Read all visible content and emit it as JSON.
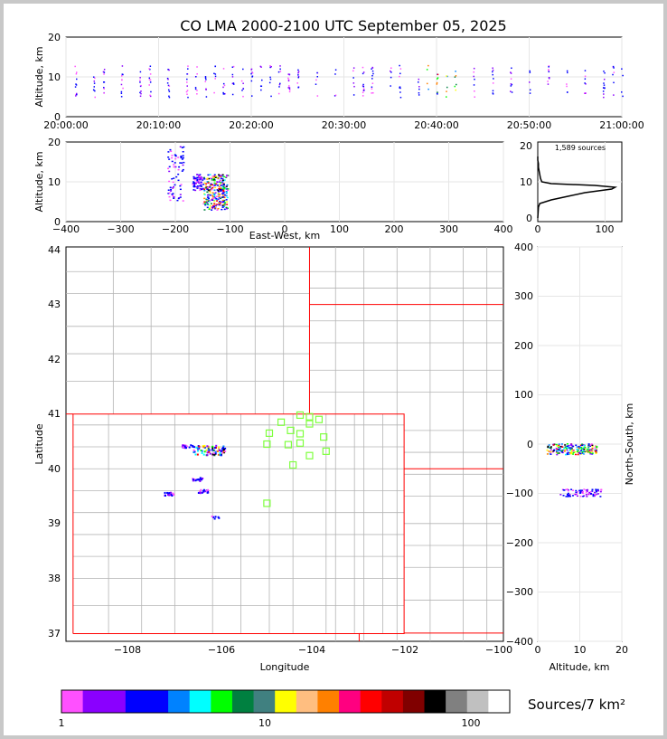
{
  "title": "CO LMA 2000-2100 UTC September 05, 2025",
  "colors": {
    "frame_bg": "#c8c8c8",
    "state_border": "#ff0000",
    "county_border": "#b4b4b4",
    "station_marker": "#7fff3f",
    "altitude_profile": "#000000"
  },
  "time_height": {
    "ylabel": "Altitude, km",
    "yticks": [
      "0",
      "10",
      "20"
    ],
    "xticks": [
      "20:00:00",
      "20:10:00",
      "20:20:00",
      "20:30:00",
      "20:40:00",
      "20:50:00",
      "21:00:00"
    ]
  },
  "east_west": {
    "ylabel": "Altitude, km",
    "xlabel": "East-West, km",
    "yticks": [
      "0",
      "10",
      "20"
    ],
    "xticks": [
      "−400",
      "−300",
      "−200",
      "−100",
      "0",
      "100",
      "200",
      "300",
      "400"
    ]
  },
  "histogram": {
    "sources_label": "1,589 sources",
    "yticks": [
      "0",
      "10",
      "20"
    ],
    "xticks": [
      "0",
      "100"
    ]
  },
  "plan_view": {
    "xlabel": "Longitude",
    "ylabel": "Latitude",
    "xticks": [
      "−108",
      "−106",
      "−104",
      "−102",
      "−100"
    ],
    "yticks": [
      "37",
      "38",
      "39",
      "40",
      "41",
      "42",
      "43",
      "44"
    ]
  },
  "north_south": {
    "xlabel": "Altitude, km",
    "ylabel": "North-South, km",
    "xticks": [
      "0",
      "10",
      "20"
    ],
    "yticks": [
      "−400",
      "−300",
      "−200",
      "−100",
      "0",
      "100",
      "200",
      "300",
      "400"
    ]
  },
  "colorbar": {
    "label": "Sources/7 km²",
    "ticks": [
      "1",
      "10",
      "100"
    ],
    "colors": [
      "#ff50ff",
      "#8a00ff",
      "#8a00ff",
      "#0000ff",
      "#0000ff",
      "#0082ff",
      "#00ffff",
      "#00ff00",
      "#008040",
      "#408080",
      "#ffff00",
      "#ffbe80",
      "#ff8000",
      "#ff0080",
      "#ff0000",
      "#c00000",
      "#800000",
      "#000000",
      "#808080",
      "#c0c0c0",
      "#ffffff"
    ]
  },
  "chart_data": [
    {
      "type": "scatter",
      "panel": "time-height",
      "x_range": [
        "20:00:00",
        "21:00:00"
      ],
      "ylim": [
        0,
        20
      ],
      "active_minutes": [
        1,
        3,
        4,
        6,
        8,
        9,
        11,
        13,
        14,
        15,
        16,
        17,
        18,
        19,
        20,
        21,
        22,
        23,
        24,
        25,
        27,
        29,
        31,
        32,
        33,
        35,
        36,
        38,
        39,
        40,
        41,
        42,
        44,
        46,
        48,
        50,
        52,
        54,
        56,
        58,
        59,
        60
      ],
      "typical_altitude_km": 9
    },
    {
      "type": "scatter",
      "panel": "east-west vs altitude",
      "xlim": [
        -400,
        400
      ],
      "ylim": [
        0,
        20
      ],
      "clusters": [
        {
          "x_range": [
            -215,
            -185
          ],
          "alt_range": [
            5,
            19
          ]
        },
        {
          "x_range": [
            -170,
            -150
          ],
          "alt_range": [
            8,
            12
          ]
        },
        {
          "x_range": [
            -150,
            -105
          ],
          "alt_range": [
            3,
            12
          ]
        }
      ]
    },
    {
      "type": "line",
      "panel": "altitude histogram",
      "xlim": [
        0,
        125
      ],
      "ylim": [
        0,
        20
      ],
      "profile_alt_km": [
        0,
        3,
        4,
        5,
        6,
        7,
        7.5,
        8,
        8.5,
        9,
        9.5,
        10,
        11,
        12,
        13,
        14,
        15,
        16,
        17
      ],
      "profile_counts": [
        0,
        1,
        3,
        20,
        45,
        70,
        90,
        110,
        115,
        85,
        20,
        6,
        4,
        3,
        2,
        1,
        1,
        0,
        0
      ],
      "total_sources": 1589
    },
    {
      "type": "scatter",
      "panel": "plan view",
      "xlim": [
        -109.2,
        -99.95
      ],
      "ylim": [
        36.85,
        44.05
      ],
      "stations": [
        [
          -104.9,
          40.65
        ],
        [
          -104.65,
          40.85
        ],
        [
          -104.25,
          40.98
        ],
        [
          -104.05,
          40.95
        ],
        [
          -103.85,
          40.9
        ],
        [
          -104.05,
          40.82
        ],
        [
          -104.45,
          40.7
        ],
        [
          -104.25,
          40.64
        ],
        [
          -103.75,
          40.58
        ],
        [
          -104.95,
          40.45
        ],
        [
          -104.5,
          40.44
        ],
        [
          -104.25,
          40.47
        ],
        [
          -103.7,
          40.32
        ],
        [
          -104.05,
          40.24
        ],
        [
          -104.4,
          40.07
        ],
        [
          -104.95,
          39.37
        ]
      ],
      "clusters": [
        {
          "lon": -106.2,
          "lat": 40.35,
          "size": "large"
        },
        {
          "lon": -106.65,
          "lat": 40.42,
          "size": "small"
        },
        {
          "lon": -106.45,
          "lat": 39.82,
          "size": "small"
        },
        {
          "lon": -107.05,
          "lat": 39.55,
          "size": "small"
        },
        {
          "lon": -106.3,
          "lat": 39.6,
          "size": "small"
        },
        {
          "lon": -106.05,
          "lat": 39.12,
          "size": "tiny"
        }
      ]
    },
    {
      "type": "scatter",
      "panel": "altitude vs north-south",
      "xlim": [
        0,
        20
      ],
      "ylim": [
        -400,
        400
      ],
      "clusters": [
        {
          "alt_range": [
            2,
            14
          ],
          "ns_range": [
            -20,
            2
          ]
        },
        {
          "alt_range": [
            5,
            15
          ],
          "ns_range": [
            -105,
            -90
          ]
        }
      ]
    }
  ]
}
